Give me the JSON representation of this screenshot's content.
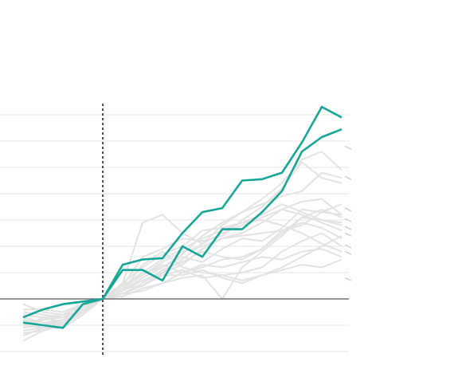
{
  "chart_data": {
    "type": "line",
    "title": "",
    "xlabel": "",
    "ylabel": "",
    "x": [
      -4,
      -3,
      -2,
      -1,
      0,
      1,
      2,
      3,
      4,
      5,
      6,
      7,
      8,
      9,
      10,
      11,
      12
    ],
    "xlim": [
      -5.1,
      12.4
    ],
    "ylim": [
      -2,
      7
    ],
    "grid": true,
    "gridlines_y": [
      -2,
      -1,
      1,
      2,
      3,
      4,
      5,
      6,
      7
    ],
    "baseline_y": 0,
    "reference_x": 0,
    "colors": {
      "highlight": "#16a596",
      "background": "#e2e2e2",
      "grid": "#e6e6e6",
      "baseline": "#555555",
      "reference": "#222222"
    },
    "highlight_series": [
      {
        "values": [
          -0.7,
          -0.4,
          -0.2,
          -0.1,
          0.0,
          1.3,
          1.5,
          1.55,
          2.5,
          3.3,
          3.45,
          4.5,
          4.55,
          4.8,
          5.95,
          7.3,
          6.9
        ]
      },
      {
        "values": [
          -0.9,
          -1.0,
          -1.1,
          -0.2,
          0.0,
          1.1,
          1.1,
          0.7,
          2.0,
          1.6,
          2.65,
          2.65,
          3.3,
          4.1,
          5.6,
          6.15,
          6.45
        ]
      }
    ],
    "background_series": [
      {
        "values": [
          -1.0,
          -0.8,
          -0.6,
          -0.3,
          0.0,
          0.6,
          2.9,
          3.2,
          2.5,
          2.1,
          2.5,
          2.8,
          3.1,
          3.4,
          3.2,
          2.9,
          2.6
        ]
      },
      {
        "values": [
          -1.1,
          -1.0,
          -0.9,
          -0.4,
          0.0,
          0.3,
          0.8,
          1.2,
          1.6,
          1.4,
          1.9,
          2.3,
          2.2,
          2.7,
          3.4,
          3.3,
          3.2
        ]
      },
      {
        "values": [
          -0.5,
          -0.6,
          -0.7,
          -0.2,
          0.0,
          0.4,
          0.9,
          1.3,
          1.0,
          1.2,
          1.5,
          1.6,
          1.9,
          2.6,
          2.8,
          3.3,
          3.6
        ]
      },
      {
        "values": [
          -1.3,
          -1.2,
          -1.0,
          -0.5,
          0.0,
          0.2,
          0.5,
          0.9,
          1.1,
          0.8,
          0.9,
          1.0,
          1.2,
          1.8,
          2.2,
          2.5,
          2.0
        ]
      },
      {
        "values": [
          -1.6,
          -1.2,
          -0.9,
          -0.4,
          0.0,
          0.5,
          1.0,
          1.5,
          1.9,
          2.3,
          2.6,
          2.9,
          3.0,
          2.8,
          2.5,
          2.1,
          1.8
        ]
      },
      {
        "values": [
          -0.2,
          -0.5,
          -0.6,
          -0.3,
          0.0,
          0.3,
          1.3,
          1.8,
          1.2,
          1.0,
          0.9,
          0.7,
          0.9,
          1.2,
          1.6,
          2.0,
          2.4
        ]
      },
      {
        "values": [
          -0.8,
          -0.9,
          -1.0,
          -0.3,
          0.0,
          0.2,
          0.6,
          1.1,
          1.4,
          1.8,
          1.6,
          1.5,
          1.9,
          2.5,
          3.1,
          3.0,
          2.8
        ]
      },
      {
        "values": [
          -0.6,
          -0.7,
          -0.9,
          -0.4,
          0.0,
          0.4,
          0.7,
          1.0,
          1.3,
          1.9,
          2.3,
          2.4,
          2.5,
          2.6,
          2.9,
          2.7,
          2.3
        ]
      },
      {
        "values": [
          -1.2,
          -1.1,
          -1.1,
          -0.6,
          0.0,
          0.1,
          0.4,
          0.6,
          1.0,
          1.3,
          1.2,
          1.4,
          1.6,
          1.5,
          1.8,
          1.9,
          1.6
        ]
      },
      {
        "values": [
          -0.9,
          -0.8,
          -0.7,
          -0.4,
          0.0,
          0.6,
          1.2,
          1.7,
          2.0,
          2.6,
          2.7,
          2.9,
          3.2,
          3.6,
          3.3,
          3.0,
          2.9
        ]
      },
      {
        "values": [
          -0.4,
          -0.4,
          -0.5,
          -0.2,
          0.0,
          0.5,
          1.6,
          1.9,
          2.3,
          2.2,
          2.4,
          3.0,
          3.5,
          4.2,
          5.2,
          4.6,
          4.4
        ]
      },
      {
        "values": [
          -1.4,
          -1.1,
          -0.8,
          -0.4,
          0.0,
          0.3,
          0.7,
          0.9,
          0.9,
          1.1,
          0.8,
          0.6,
          0.9,
          1.1,
          1.3,
          1.2,
          1.5
        ]
      },
      {
        "values": [
          -0.7,
          -0.9,
          -0.8,
          -0.3,
          0.0,
          0.4,
          0.5,
          1.0,
          1.5,
          2.1,
          2.8,
          3.3,
          3.6,
          3.9,
          4.1,
          4.8,
          4.6
        ]
      },
      {
        "values": [
          -1.0,
          -1.1,
          -0.9,
          -0.5,
          0.0,
          0.2,
          0.3,
          0.6,
          0.8,
          0.9,
          0.0,
          1.2,
          1.8,
          2.4,
          3.1,
          3.4,
          3.1
        ]
      },
      {
        "values": [
          -0.8,
          -1.0,
          -0.8,
          -0.3,
          0.0,
          0.5,
          0.9,
          1.4,
          1.8,
          2.0,
          2.3,
          2.5,
          2.9,
          3.4,
          3.7,
          3.8,
          3.2
        ]
      },
      {
        "values": [
          -1.1,
          -0.7,
          -0.6,
          -0.2,
          0.0,
          0.4,
          1.0,
          1.2,
          1.7,
          2.4,
          2.9,
          3.3,
          3.8,
          4.4,
          5.3,
          5.6,
          4.9
        ]
      }
    ],
    "end_marks_y": [
      5.75,
      4.6,
      3.4,
      3.0,
      2.7,
      2.45,
      2.0,
      1.75,
      0.75
    ]
  }
}
